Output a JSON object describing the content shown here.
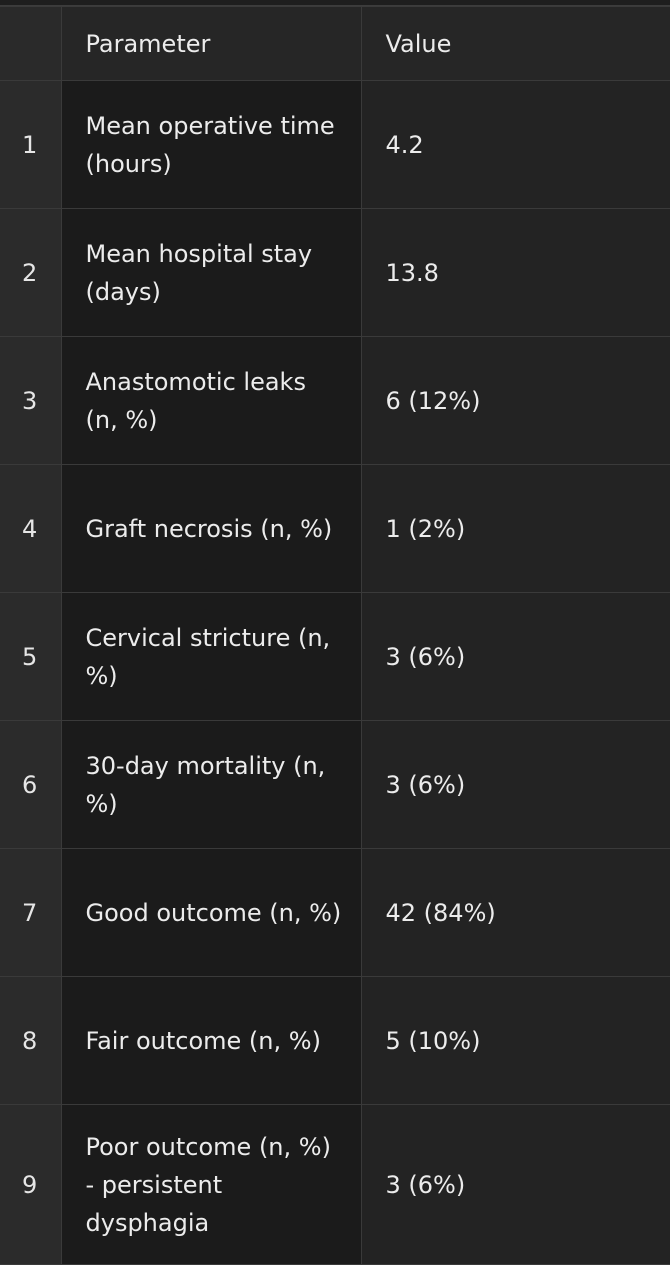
{
  "table": {
    "headers": {
      "index": "",
      "parameter": "Parameter",
      "value": "Value"
    },
    "rows": [
      {
        "index": "1",
        "parameter": "Mean operative time (hours)",
        "value": "4.2"
      },
      {
        "index": "2",
        "parameter": "Mean hospital stay (days)",
        "value": "13.8"
      },
      {
        "index": "3",
        "parameter": "Anastomotic leaks (n, %)",
        "value": "6 (12%)"
      },
      {
        "index": "4",
        "parameter": "Graft necrosis (n, %)",
        "value": "1 (2%)"
      },
      {
        "index": "5",
        "parameter": "Cervical stricture (n, %)",
        "value": "3 (6%)"
      },
      {
        "index": "6",
        "parameter": "30-day mortality (n, %)",
        "value": "3 (6%)"
      },
      {
        "index": "7",
        "parameter": "Good outcome (n, %)",
        "value": "42 (84%)"
      },
      {
        "index": "8",
        "parameter": "Fair outcome (n, %)",
        "value": "5 (10%)"
      },
      {
        "index": "9",
        "parameter": "Poor outcome (n, %) - persistent dysphagia",
        "value": "3 (6%)"
      }
    ]
  }
}
